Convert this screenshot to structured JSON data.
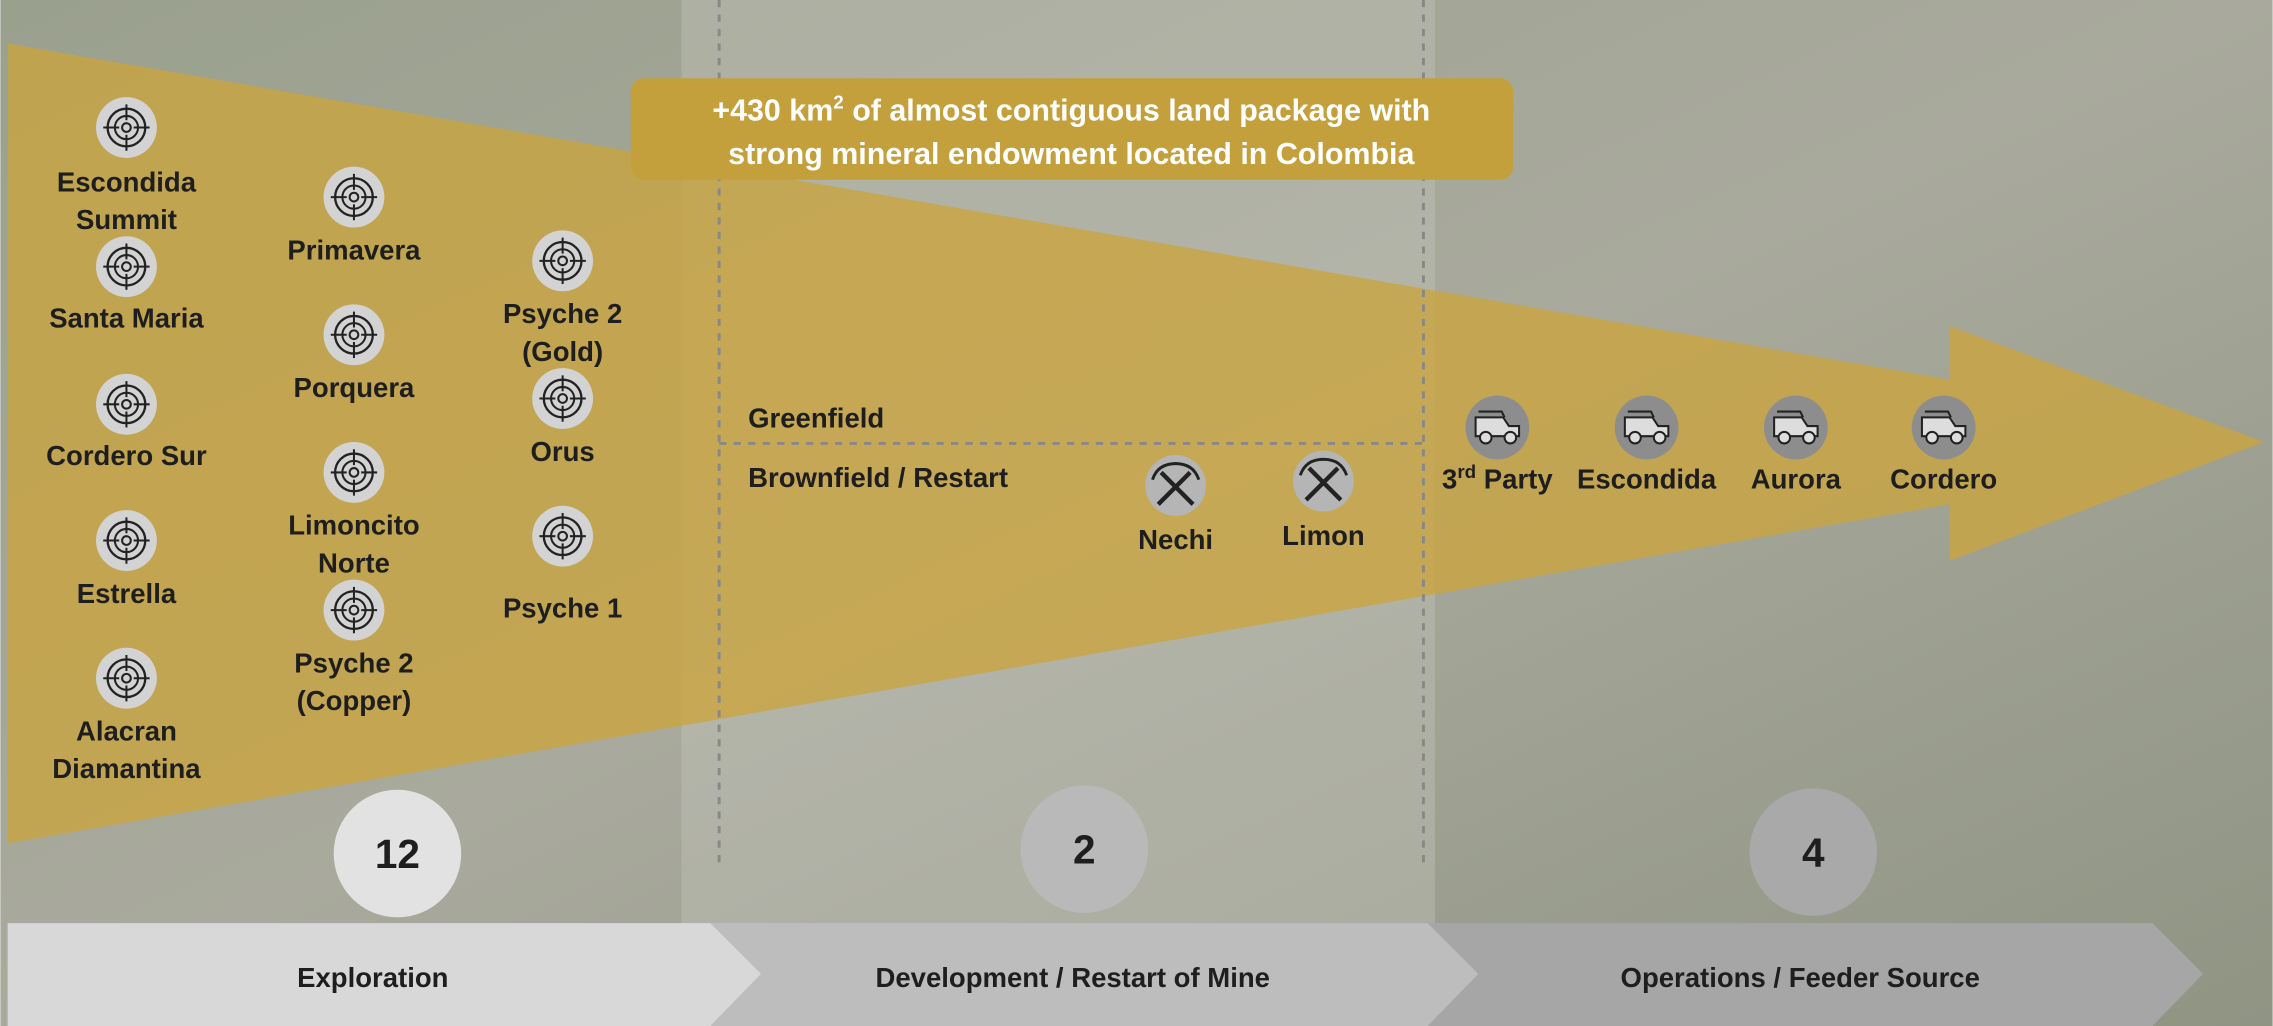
{
  "headline": {
    "line1_parts": [
      "+430 km",
      "2",
      " of almost contiguous land package with"
    ],
    "line2": "strong mineral endowment located in Colombia"
  },
  "exploration": {
    "targets": [
      {
        "lines": [
          "Escondida",
          "Summit"
        ]
      },
      {
        "lines": [
          "Santa Maria"
        ]
      },
      {
        "lines": [
          "Cordero Sur"
        ]
      },
      {
        "lines": [
          "Estrella"
        ]
      },
      {
        "lines": [
          "Alacran",
          "Diamantina"
        ]
      },
      {
        "lines": [
          "Primavera"
        ]
      },
      {
        "lines": [
          "Porquera"
        ]
      },
      {
        "lines": [
          "Limoncito",
          "Norte"
        ]
      },
      {
        "lines": [
          "Psyche 2",
          "(Copper)"
        ]
      },
      {
        "lines": [
          "Psyche 2",
          "(Gold)"
        ]
      },
      {
        "lines": [
          "Orus"
        ]
      },
      {
        "lines": [
          "Psyche 1"
        ]
      }
    ],
    "count": 12
  },
  "development": {
    "greenfield": "Greenfield",
    "brownfield": "Brownfield / Restart",
    "sites": [
      "Nechi",
      "Limon"
    ],
    "count": 2
  },
  "operations": {
    "sites": [
      {
        "parts": [
          "3",
          "rd",
          " Party"
        ]
      },
      {
        "parts": [
          "Escondida"
        ]
      },
      {
        "parts": [
          "Aurora"
        ]
      },
      {
        "parts": [
          "Cordero"
        ]
      }
    ],
    "count": 4
  },
  "stages": [
    "Exploration",
    "Development / Restart of Mine",
    "Operations / Feeder Source"
  ]
}
